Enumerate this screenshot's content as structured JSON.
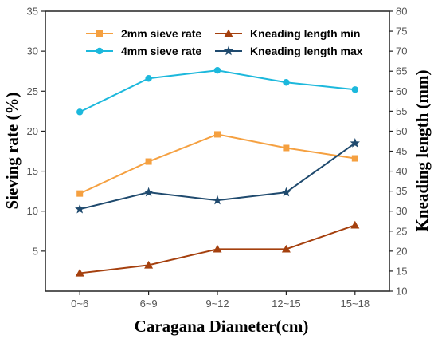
{
  "chart_data": {
    "type": "line",
    "categories": [
      "0~6",
      "6~9",
      "9~12",
      "12~15",
      "15~18"
    ],
    "xlabel": "Caragana Diameter(cm)",
    "ylabel_left": "Sieving rate (%)",
    "ylabel_right": "Kneading length (mm)",
    "ylim_left": [
      0,
      35
    ],
    "ylim_right": [
      10,
      80
    ],
    "yticks_left": [
      "5",
      "10",
      "15",
      "20",
      "25",
      "30",
      "35"
    ],
    "yticks_right": [
      "10",
      "15",
      "20",
      "25",
      "30",
      "35",
      "40",
      "45",
      "50",
      "55",
      "60",
      "65",
      "70",
      "75",
      "80"
    ],
    "legend_position": "top",
    "series": [
      {
        "name": "2mm sieve rate",
        "axis": "left",
        "marker": "square",
        "color": "#f5a040",
        "values": [
          12.2,
          16.2,
          19.6,
          17.9,
          16.6
        ]
      },
      {
        "name": "4mm sieve rate",
        "axis": "left",
        "marker": "circle",
        "color": "#1cb8dc",
        "values": [
          22.4,
          26.6,
          27.6,
          26.1,
          25.2
        ]
      },
      {
        "name": "Kneading length min",
        "axis": "right",
        "marker": "triangle",
        "color": "#a5400e",
        "values": [
          14.5,
          16.5,
          20.5,
          20.5,
          26.5
        ]
      },
      {
        "name": "Kneading length max",
        "axis": "right",
        "marker": "star",
        "color": "#1f4a6e",
        "values": [
          30.5,
          34.7,
          32.7,
          34.7,
          47.0
        ]
      }
    ]
  }
}
